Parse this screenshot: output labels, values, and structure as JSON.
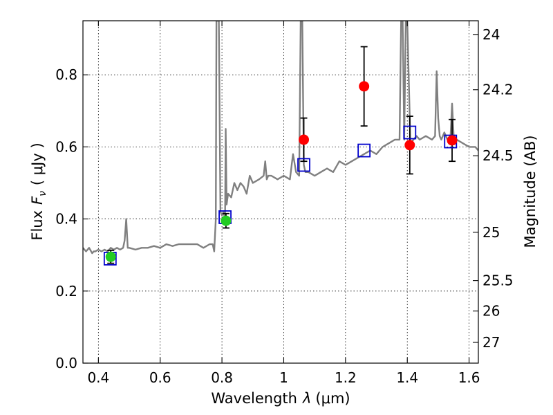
{
  "chart_data": {
    "type": "scatter",
    "xlabel_prefix": "Wavelength",
    "xlabel_symbol": "λ",
    "xlabel_unit": "(μm)",
    "ylabel_prefix": "Flux",
    "ylabel_symbol": "F",
    "ylabel_subscript": "ν",
    "ylabel_unit": "( μJy )",
    "y2label": "Magnitude (AB)",
    "xlim": [
      0.35,
      1.63
    ],
    "ylim": [
      0.0,
      0.95
    ],
    "grid": true,
    "x_ticks": [
      {
        "value": 0.4,
        "label": "0.4"
      },
      {
        "value": 0.6,
        "label": "0.6"
      },
      {
        "value": 0.8,
        "label": "0.8"
      },
      {
        "value": 1.0,
        "label": "1"
      },
      {
        "value": 1.2,
        "label": "1.2"
      },
      {
        "value": 1.4,
        "label": "1.4"
      },
      {
        "value": 1.6,
        "label": "1.6"
      }
    ],
    "y_ticks": [
      {
        "value": 0.0,
        "label": "0.0"
      },
      {
        "value": 0.2,
        "label": "0.2"
      },
      {
        "value": 0.4,
        "label": "0.4"
      },
      {
        "value": 0.6,
        "label": "0.6"
      },
      {
        "value": 0.8,
        "label": "0.8"
      }
    ],
    "y2_ticks": [
      {
        "value": 24,
        "label": "24"
      },
      {
        "value": 24.2,
        "label": "24.2"
      },
      {
        "value": 24.5,
        "label": "24.5"
      },
      {
        "value": 25,
        "label": "25"
      },
      {
        "value": 25.5,
        "label": "25.5"
      },
      {
        "value": 26,
        "label": "26"
      },
      {
        "value": 27,
        "label": "27"
      }
    ],
    "colors": {
      "model": "#808080",
      "model_photometry": "#0000cc",
      "observed_detection": "#ff0000",
      "observed_blue": "#22cc22",
      "errorbar": "#000000"
    },
    "model_spectrum": {
      "x": [
        0.35,
        0.36,
        0.37,
        0.38,
        0.385,
        0.39,
        0.4,
        0.41,
        0.42,
        0.43,
        0.44,
        0.45,
        0.46,
        0.47,
        0.48,
        0.485,
        0.49,
        0.495,
        0.5,
        0.52,
        0.54,
        0.56,
        0.58,
        0.6,
        0.62,
        0.64,
        0.66,
        0.68,
        0.7,
        0.72,
        0.74,
        0.76,
        0.77,
        0.775,
        0.78,
        0.782,
        0.785,
        0.79,
        0.795,
        0.8,
        0.805,
        0.81,
        0.812,
        0.815,
        0.82,
        0.83,
        0.84,
        0.85,
        0.86,
        0.87,
        0.88,
        0.89,
        0.9,
        0.92,
        0.935,
        0.94,
        0.945,
        0.95,
        0.96,
        0.98,
        1.0,
        1.02,
        1.03,
        1.04,
        1.05,
        1.055,
        1.06,
        1.065,
        1.07,
        1.08,
        1.1,
        1.12,
        1.14,
        1.16,
        1.18,
        1.2,
        1.22,
        1.24,
        1.26,
        1.28,
        1.3,
        1.32,
        1.34,
        1.36,
        1.375,
        1.38,
        1.385,
        1.39,
        1.395,
        1.4,
        1.41,
        1.42,
        1.43,
        1.44,
        1.46,
        1.48,
        1.49,
        1.495,
        1.5,
        1.505,
        1.51,
        1.52,
        1.53,
        1.54,
        1.545,
        1.55,
        1.56,
        1.58,
        1.6,
        1.62,
        1.63
      ],
      "y": [
        0.32,
        0.31,
        0.32,
        0.305,
        0.31,
        0.31,
        0.315,
        0.31,
        0.315,
        0.31,
        0.32,
        0.315,
        0.32,
        0.315,
        0.32,
        0.34,
        0.4,
        0.32,
        0.32,
        0.315,
        0.32,
        0.32,
        0.325,
        0.32,
        0.33,
        0.325,
        0.33,
        0.33,
        0.33,
        0.33,
        0.32,
        0.33,
        0.33,
        0.31,
        0.4,
        0.95,
        0.95,
        0.95,
        0.42,
        0.41,
        0.42,
        0.4,
        0.65,
        0.44,
        0.47,
        0.46,
        0.5,
        0.48,
        0.5,
        0.49,
        0.47,
        0.52,
        0.5,
        0.51,
        0.52,
        0.56,
        0.51,
        0.52,
        0.52,
        0.51,
        0.52,
        0.51,
        0.58,
        0.53,
        0.52,
        0.95,
        0.95,
        0.55,
        0.53,
        0.53,
        0.52,
        0.53,
        0.54,
        0.53,
        0.56,
        0.55,
        0.56,
        0.57,
        0.58,
        0.59,
        0.58,
        0.6,
        0.61,
        0.62,
        0.62,
        0.95,
        0.95,
        0.62,
        0.95,
        0.95,
        0.61,
        0.62,
        0.63,
        0.62,
        0.63,
        0.62,
        0.63,
        0.81,
        0.68,
        0.63,
        0.62,
        0.64,
        0.62,
        0.63,
        0.72,
        0.63,
        0.62,
        0.61,
        0.6,
        0.6,
        0.59
      ]
    },
    "model_photometry": {
      "x": [
        0.438,
        0.81,
        1.065,
        1.26,
        1.408,
        1.54
      ],
      "y": [
        0.29,
        0.405,
        0.55,
        0.59,
        0.64,
        0.615
      ]
    },
    "observed_detections": {
      "x": [
        1.065,
        1.26,
        1.408,
        1.545
      ],
      "y": [
        0.62,
        0.768,
        0.605,
        0.618
      ],
      "yerr": [
        0.06,
        0.11,
        0.08,
        0.058
      ]
    },
    "observed_blue": {
      "x": [
        0.44,
        0.813
      ],
      "y": [
        0.295,
        0.395
      ],
      "yerr": [
        0.018,
        0.02
      ]
    }
  }
}
